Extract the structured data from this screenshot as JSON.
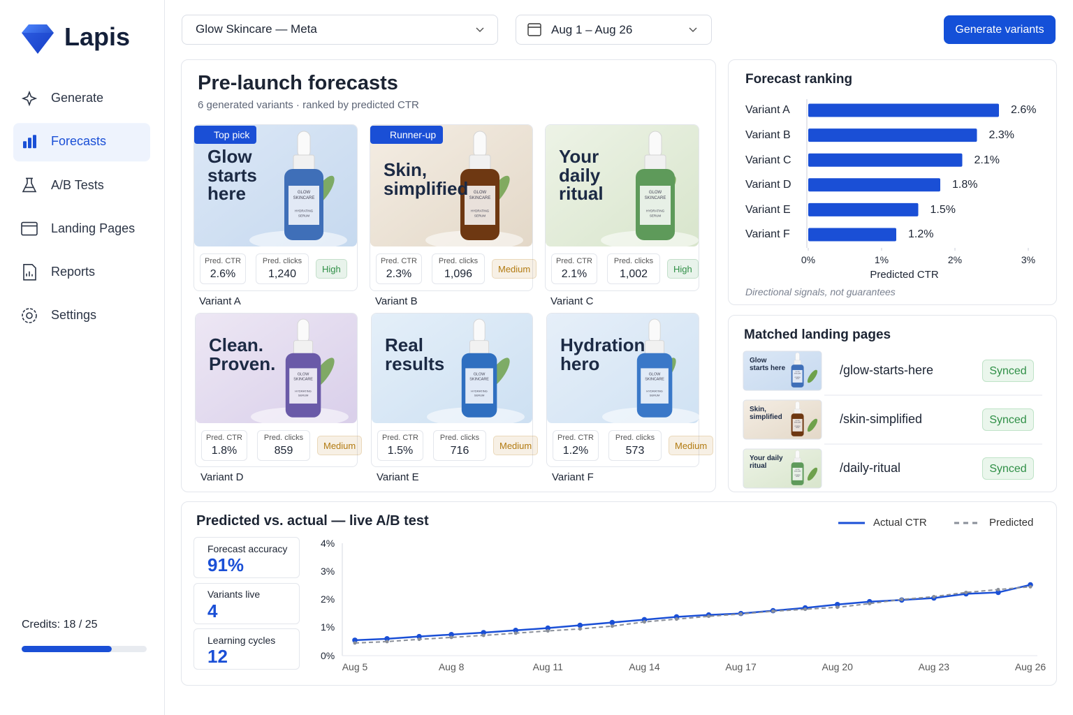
{
  "brand": "Lapis",
  "nav": {
    "items": [
      "Generate",
      "Forecasts",
      "A/B Tests",
      "Landing Pages",
      "Reports",
      "Settings"
    ],
    "active": 1
  },
  "credits": {
    "label": "Credits: 18 / 25",
    "used": 18,
    "total": 25
  },
  "toolbar": {
    "account": "Glow Skincare — Meta",
    "date_range": "Aug 1 – Aug 26",
    "action": "Generate variants"
  },
  "forecasts": {
    "title": "Pre-launch forecasts",
    "subtitle": "6 generated variants · ranked by predicted CTR",
    "ctr_label": "Pred. CTR",
    "clicks_label": "Pred. clicks",
    "bottle_text": [
      "GLOW",
      "SKINCARE",
      "HYDRATING",
      "SERUM"
    ],
    "variants": [
      {
        "name": "Variant A",
        "badge": "Top pick",
        "headline": "Glow starts here",
        "ctr": "2.6%",
        "clicks": "1,240",
        "confidence": "High",
        "confidence_color": "#2f8f46"
      },
      {
        "name": "Variant B",
        "badge": "Runner-up",
        "headline": "Skin, simplified",
        "ctr": "2.3%",
        "clicks": "1,096",
        "confidence": "Medium",
        "confidence_color": "#b27a10"
      },
      {
        "name": "Variant C",
        "headline": "Your daily ritual",
        "ctr": "2.1%",
        "clicks": "1,002",
        "confidence": "High",
        "confidence_color": "#2f8f46"
      },
      {
        "name": "Variant D",
        "headline": "Clean. Proven.",
        "ctr": "1.8%",
        "clicks": "859",
        "confidence": "Medium",
        "confidence_color": "#b27a10"
      },
      {
        "name": "Variant E",
        "headline": "Real results",
        "ctr": "1.5%",
        "clicks": "716",
        "confidence": "Medium",
        "confidence_color": "#b27a10"
      },
      {
        "name": "Variant F",
        "headline": "Hydration hero",
        "ctr": "1.2%",
        "clicks": "573",
        "confidence": "Medium",
        "confidence_color": "#b27a10"
      }
    ]
  },
  "landing_pages": {
    "title": "Matched landing pages",
    "pages": [
      {
        "thumb": "Glow starts here",
        "path": "/glow-starts-here",
        "status": "Synced"
      },
      {
        "thumb": "Skin, simplified",
        "path": "/skin-simplified",
        "status": "Synced"
      },
      {
        "thumb": "Your daily ritual",
        "path": "/daily-ritual",
        "status": "Synced"
      }
    ]
  },
  "ab_test": {
    "stats": [
      {
        "label": "Forecast accuracy",
        "value": "91%"
      },
      {
        "label": "Variants live",
        "value": "4"
      },
      {
        "label": "Learning cycles",
        "value": "12"
      }
    ]
  },
  "chart_data": [
    {
      "type": "bar",
      "orientation": "horizontal",
      "title": "Forecast ranking",
      "categories": [
        "Variant A",
        "Variant B",
        "Variant C",
        "Variant D",
        "Variant E",
        "Variant F"
      ],
      "values": [
        2.6,
        2.3,
        2.1,
        1.8,
        1.5,
        1.2
      ],
      "value_labels": [
        "2.6%",
        "2.3%",
        "2.1%",
        "1.8%",
        "1.5%",
        "1.2%"
      ],
      "color": "#1a4fd6",
      "xlim": [
        0,
        3
      ],
      "xticks": [
        {
          "value": 0,
          "label": "0%"
        },
        {
          "value": 1,
          "label": "1%"
        },
        {
          "value": 2,
          "label": "2%"
        },
        {
          "value": 3,
          "label": "3%"
        }
      ],
      "xlabel": "Predicted CTR",
      "note": "Directional signals, not guarantees"
    },
    {
      "type": "line",
      "title": "Predicted vs. actual — live A/B test",
      "categories": [
        "Aug 5",
        null,
        null,
        "Aug 8",
        null,
        null,
        "Aug 11",
        null,
        null,
        "Aug 14",
        null,
        null,
        "Aug 17",
        null,
        null,
        "Aug 20",
        null,
        null,
        "Aug 23",
        null,
        null,
        "Aug 26"
      ],
      "series": [
        {
          "name": "Actual CTR",
          "color": "#1a4fd6",
          "style": "solid",
          "values": [
            0.55,
            0.6,
            0.68,
            0.75,
            0.82,
            0.9,
            0.98,
            1.08,
            1.18,
            1.28,
            1.38,
            1.45,
            1.5,
            1.6,
            1.7,
            1.82,
            1.92,
            1.98,
            2.05,
            2.2,
            2.25,
            2.52
          ]
        },
        {
          "name": "Predicted",
          "color": "#8a8f99",
          "style": "dashed",
          "values": [
            0.45,
            0.5,
            0.58,
            0.65,
            0.72,
            0.8,
            0.88,
            0.95,
            1.05,
            1.2,
            1.3,
            1.4,
            1.48,
            1.58,
            1.65,
            1.72,
            1.85,
            2.0,
            2.1,
            2.25,
            2.35,
            2.45
          ]
        }
      ],
      "ylim": [
        0,
        4
      ],
      "yticks": [
        {
          "value": 0,
          "label": "0%"
        },
        {
          "value": 1,
          "label": "1%"
        },
        {
          "value": 2,
          "label": "2%"
        },
        {
          "value": 3,
          "label": "3%"
        },
        {
          "value": 4,
          "label": "4%"
        }
      ],
      "grid": false,
      "legend": "top-right"
    }
  ]
}
